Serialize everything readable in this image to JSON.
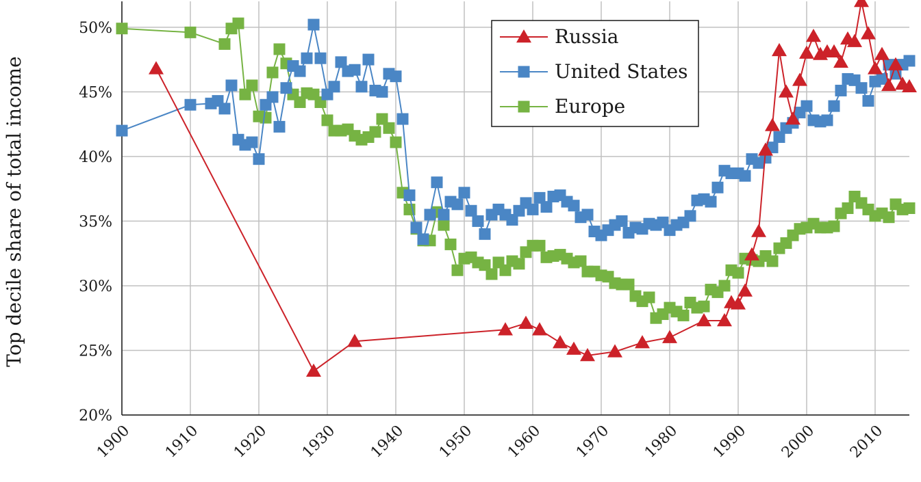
{
  "chart_data": {
    "type": "line",
    "title": "",
    "xlabel": "",
    "ylabel": "Top decile share of total income",
    "xlim": [
      1900,
      2015
    ],
    "ylim": [
      20,
      52
    ],
    "x_ticks": [
      "1900",
      "1910",
      "1920",
      "1930",
      "1940",
      "1950",
      "1960",
      "1970",
      "1980",
      "1990",
      "2000",
      "2010"
    ],
    "y_ticks": [
      "20%",
      "25%",
      "30%",
      "35%",
      "40%",
      "45%",
      "50%"
    ],
    "grid": true,
    "legend_position": "top-center",
    "series": [
      {
        "name": "Russia",
        "color": "#cc2229",
        "marker": "triangle",
        "points": [
          [
            1905,
            46.8
          ],
          [
            1928,
            23.4
          ],
          [
            1934,
            25.7
          ],
          [
            1956,
            26.6
          ],
          [
            1959,
            27.1
          ],
          [
            1961,
            26.6
          ],
          [
            1964,
            25.6
          ],
          [
            1966,
            25.1
          ],
          [
            1968,
            24.6
          ],
          [
            1972,
            24.9
          ],
          [
            1976,
            25.6
          ],
          [
            1980,
            26.0
          ],
          [
            1985,
            27.3
          ],
          [
            1988,
            27.3
          ],
          [
            1989,
            28.7
          ],
          [
            1990,
            28.6
          ],
          [
            1991,
            29.6
          ],
          [
            1992,
            32.4
          ],
          [
            1993,
            34.2
          ],
          [
            1994,
            40.5
          ],
          [
            1995,
            42.4
          ],
          [
            1996,
            48.2
          ],
          [
            1997,
            45.0
          ],
          [
            1998,
            42.9
          ],
          [
            1999,
            45.9
          ],
          [
            2000,
            48.0
          ],
          [
            2001,
            49.3
          ],
          [
            2002,
            47.9
          ],
          [
            2003,
            48.1
          ],
          [
            2004,
            48.1
          ],
          [
            2005,
            47.3
          ],
          [
            2006,
            49.1
          ],
          [
            2007,
            48.9
          ],
          [
            2008,
            52.0
          ],
          [
            2009,
            49.5
          ],
          [
            2010,
            46.8
          ],
          [
            2011,
            47.9
          ],
          [
            2012,
            45.5
          ],
          [
            2013,
            47.1
          ],
          [
            2014,
            45.6
          ],
          [
            2015,
            45.4
          ]
        ]
      },
      {
        "name": "United States",
        "color": "#4a86c5",
        "marker": "square",
        "points": [
          [
            1900,
            42.0
          ],
          [
            1910,
            44.0
          ],
          [
            1913,
            44.1
          ],
          [
            1914,
            44.3
          ],
          [
            1915,
            43.7
          ],
          [
            1916,
            45.5
          ],
          [
            1917,
            41.3
          ],
          [
            1918,
            40.9
          ],
          [
            1919,
            41.1
          ],
          [
            1920,
            39.8
          ],
          [
            1921,
            44.0
          ],
          [
            1922,
            44.6
          ],
          [
            1923,
            42.3
          ],
          [
            1924,
            45.3
          ],
          [
            1925,
            47.0
          ],
          [
            1926,
            46.6
          ],
          [
            1927,
            47.6
          ],
          [
            1928,
            50.2
          ],
          [
            1929,
            47.6
          ],
          [
            1930,
            44.8
          ],
          [
            1931,
            45.4
          ],
          [
            1932,
            47.3
          ],
          [
            1933,
            46.6
          ],
          [
            1934,
            46.7
          ],
          [
            1935,
            45.4
          ],
          [
            1936,
            47.5
          ],
          [
            1937,
            45.1
          ],
          [
            1938,
            45.0
          ],
          [
            1939,
            46.4
          ],
          [
            1940,
            46.2
          ],
          [
            1941,
            42.9
          ],
          [
            1942,
            37.0
          ],
          [
            1943,
            34.5
          ],
          [
            1944,
            33.6
          ],
          [
            1945,
            35.5
          ],
          [
            1946,
            38.0
          ],
          [
            1947,
            35.5
          ],
          [
            1948,
            36.5
          ],
          [
            1949,
            36.3
          ],
          [
            1950,
            37.2
          ],
          [
            1951,
            35.8
          ],
          [
            1952,
            35.0
          ],
          [
            1953,
            34.0
          ],
          [
            1954,
            35.5
          ],
          [
            1955,
            35.9
          ],
          [
            1956,
            35.5
          ],
          [
            1957,
            35.1
          ],
          [
            1958,
            35.8
          ],
          [
            1959,
            36.4
          ],
          [
            1960,
            35.9
          ],
          [
            1961,
            36.8
          ],
          [
            1962,
            36.1
          ],
          [
            1963,
            36.9
          ],
          [
            1964,
            37.0
          ],
          [
            1965,
            36.5
          ],
          [
            1966,
            36.2
          ],
          [
            1967,
            35.3
          ],
          [
            1968,
            35.5
          ],
          [
            1969,
            34.2
          ],
          [
            1970,
            33.9
          ],
          [
            1971,
            34.3
          ],
          [
            1972,
            34.7
          ],
          [
            1973,
            35.0
          ],
          [
            1974,
            34.1
          ],
          [
            1975,
            34.5
          ],
          [
            1976,
            34.4
          ],
          [
            1977,
            34.8
          ],
          [
            1978,
            34.7
          ],
          [
            1979,
            34.9
          ],
          [
            1980,
            34.3
          ],
          [
            1981,
            34.7
          ],
          [
            1982,
            34.9
          ],
          [
            1983,
            35.4
          ],
          [
            1984,
            36.6
          ],
          [
            1985,
            36.7
          ],
          [
            1986,
            36.5
          ],
          [
            1987,
            37.6
          ],
          [
            1988,
            38.9
          ],
          [
            1989,
            38.7
          ],
          [
            1990,
            38.7
          ],
          [
            1991,
            38.5
          ],
          [
            1992,
            39.8
          ],
          [
            1993,
            39.5
          ],
          [
            1994,
            39.9
          ],
          [
            1995,
            40.7
          ],
          [
            1996,
            41.5
          ],
          [
            1997,
            42.2
          ],
          [
            1998,
            42.6
          ],
          [
            1999,
            43.4
          ],
          [
            2000,
            43.9
          ],
          [
            2001,
            42.8
          ],
          [
            2002,
            42.7
          ],
          [
            2003,
            42.8
          ],
          [
            2004,
            43.9
          ],
          [
            2005,
            45.1
          ],
          [
            2006,
            46.0
          ],
          [
            2007,
            45.9
          ],
          [
            2008,
            45.3
          ],
          [
            2009,
            44.3
          ],
          [
            2010,
            45.8
          ],
          [
            2011,
            46.0
          ],
          [
            2012,
            47.1
          ],
          [
            2013,
            46.4
          ],
          [
            2014,
            47.1
          ],
          [
            2015,
            47.4
          ]
        ]
      },
      {
        "name": "Europe",
        "color": "#76b343",
        "marker": "square",
        "points": [
          [
            1900,
            49.9
          ],
          [
            1910,
            49.6
          ],
          [
            1915,
            48.7
          ],
          [
            1916,
            49.9
          ],
          [
            1917,
            50.3
          ],
          [
            1918,
            44.8
          ],
          [
            1919,
            45.5
          ],
          [
            1920,
            43.1
          ],
          [
            1921,
            43.0
          ],
          [
            1922,
            46.5
          ],
          [
            1923,
            48.3
          ],
          [
            1924,
            47.2
          ],
          [
            1925,
            44.8
          ],
          [
            1926,
            44.2
          ],
          [
            1927,
            44.9
          ],
          [
            1928,
            44.8
          ],
          [
            1929,
            44.2
          ],
          [
            1930,
            42.8
          ],
          [
            1931,
            42.0
          ],
          [
            1932,
            42.0
          ],
          [
            1933,
            42.1
          ],
          [
            1934,
            41.6
          ],
          [
            1935,
            41.3
          ],
          [
            1936,
            41.5
          ],
          [
            1937,
            41.9
          ],
          [
            1938,
            42.9
          ],
          [
            1939,
            42.2
          ],
          [
            1940,
            41.1
          ],
          [
            1941,
            37.2
          ],
          [
            1942,
            35.9
          ],
          [
            1943,
            34.4
          ],
          [
            1944,
            33.5
          ],
          [
            1945,
            33.5
          ],
          [
            1946,
            35.7
          ],
          [
            1947,
            34.7
          ],
          [
            1948,
            33.2
          ],
          [
            1949,
            31.2
          ],
          [
            1950,
            32.1
          ],
          [
            1951,
            32.2
          ],
          [
            1952,
            31.8
          ],
          [
            1953,
            31.6
          ],
          [
            1954,
            30.9
          ],
          [
            1955,
            31.8
          ],
          [
            1956,
            31.2
          ],
          [
            1957,
            31.9
          ],
          [
            1958,
            31.7
          ],
          [
            1959,
            32.6
          ],
          [
            1960,
            33.1
          ],
          [
            1961,
            33.1
          ],
          [
            1962,
            32.2
          ],
          [
            1963,
            32.3
          ],
          [
            1964,
            32.4
          ],
          [
            1965,
            32.1
          ],
          [
            1966,
            31.8
          ],
          [
            1967,
            31.9
          ],
          [
            1968,
            31.1
          ],
          [
            1969,
            31.1
          ],
          [
            1970,
            30.8
          ],
          [
            1971,
            30.7
          ],
          [
            1972,
            30.2
          ],
          [
            1973,
            30.1
          ],
          [
            1974,
            30.1
          ],
          [
            1975,
            29.2
          ],
          [
            1976,
            28.8
          ],
          [
            1977,
            29.1
          ],
          [
            1978,
            27.5
          ],
          [
            1979,
            27.8
          ],
          [
            1980,
            28.3
          ],
          [
            1981,
            28.0
          ],
          [
            1982,
            27.7
          ],
          [
            1983,
            28.7
          ],
          [
            1984,
            28.3
          ],
          [
            1985,
            28.4
          ],
          [
            1986,
            29.7
          ],
          [
            1987,
            29.5
          ],
          [
            1988,
            30.0
          ],
          [
            1989,
            31.2
          ],
          [
            1990,
            31.0
          ],
          [
            1991,
            32.1
          ],
          [
            1992,
            32.0
          ],
          [
            1993,
            31.9
          ],
          [
            1994,
            32.3
          ],
          [
            1995,
            31.9
          ],
          [
            1996,
            32.9
          ],
          [
            1997,
            33.3
          ],
          [
            1998,
            33.9
          ],
          [
            1999,
            34.4
          ],
          [
            2000,
            34.5
          ],
          [
            2001,
            34.8
          ],
          [
            2002,
            34.5
          ],
          [
            2003,
            34.5
          ],
          [
            2004,
            34.6
          ],
          [
            2005,
            35.6
          ],
          [
            2006,
            36.0
          ],
          [
            2007,
            36.9
          ],
          [
            2008,
            36.4
          ],
          [
            2009,
            35.9
          ],
          [
            2010,
            35.4
          ],
          [
            2011,
            35.6
          ],
          [
            2012,
            35.3
          ],
          [
            2013,
            36.3
          ],
          [
            2014,
            35.9
          ],
          [
            2015,
            36.0
          ]
        ]
      }
    ]
  }
}
